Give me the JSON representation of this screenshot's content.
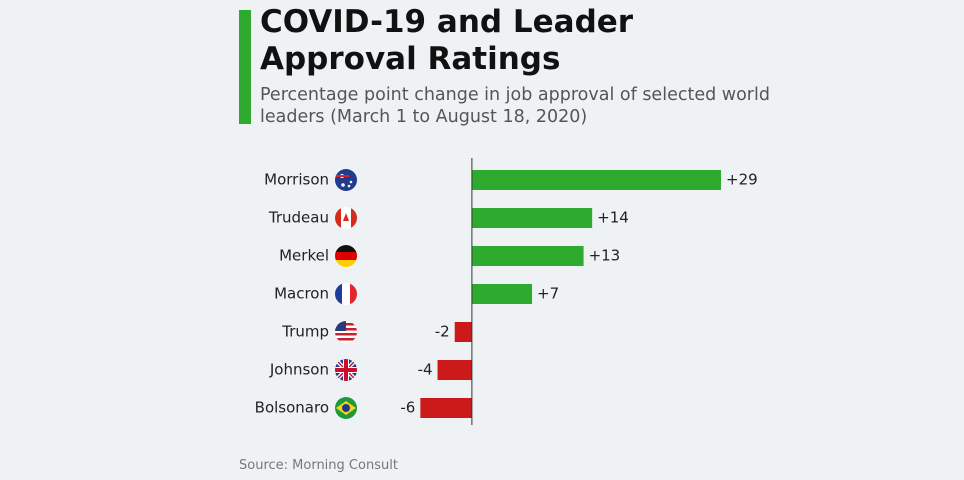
{
  "chart_data": {
    "type": "bar",
    "orientation": "horizontal",
    "title": "COVID-19 and Leader Approval Ratings",
    "subtitle": "Percentage point change in job approval of selected world leaders (March 1 to August 18, 2020)",
    "source": "Source: Morning Consult",
    "categories": [
      "Morrison",
      "Trudeau",
      "Merkel",
      "Macron",
      "Trump",
      "Johnson",
      "Bolsonaro"
    ],
    "values": [
      29,
      14,
      13,
      7,
      -2,
      -4,
      -6
    ],
    "value_labels": [
      "+29",
      "+14",
      "+13",
      "+7",
      "-2",
      "-4",
      "-6"
    ],
    "colors": [
      "#2eab2e",
      "#2eab2e",
      "#2eab2e",
      "#2eab2e",
      "#cc1a1a",
      "#cc1a1a",
      "#cc1a1a"
    ],
    "xlim": [
      -10,
      29
    ]
  }
}
